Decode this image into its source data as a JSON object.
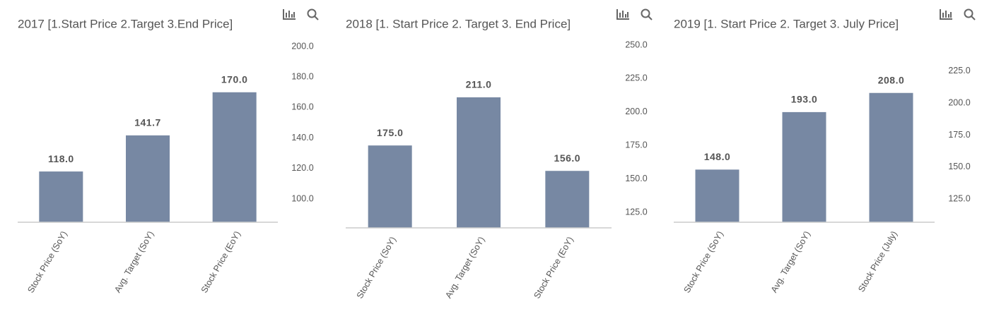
{
  "chart_data": [
    {
      "type": "bar",
      "title": "2017 [1.Start Price 2.Target 3.End Price]",
      "categories": [
        "Stock Price (SoY)",
        "Avg. Target (SoY)",
        "Stock Price (EoY)"
      ],
      "values": [
        118,
        141.7,
        170
      ],
      "value_labels": [
        "118.0",
        "141.7",
        "170.0"
      ],
      "color": "#7788a3",
      "ylim": [
        84.7,
        200
      ],
      "yticks": [
        {
          "value": 100,
          "label": "100.0"
        },
        {
          "value": 120,
          "label": "120.0"
        },
        {
          "value": 140,
          "label": "140.0"
        },
        {
          "value": 160,
          "label": "160.0"
        },
        {
          "value": 180,
          "label": "180.0"
        },
        {
          "value": 200,
          "label": "200.0"
        }
      ],
      "grid": false
    },
    {
      "type": "bar",
      "title": "2018 [1. Start Price 2. Target 3. End Price]",
      "categories": [
        "Stock Price (SoY)",
        "Avg. Target (SoY)",
        "Stock Price (EoY)"
      ],
      "values": [
        175,
        211,
        156
      ],
      "value_labels": [
        "175.0",
        "211.0",
        "156.0"
      ],
      "color": "#7788a3",
      "ylim": [
        113.4,
        250
      ],
      "yticks": [
        {
          "value": 125,
          "label": "125.0"
        },
        {
          "value": 150,
          "label": "150.0"
        },
        {
          "value": 175,
          "label": "175.0"
        },
        {
          "value": 200,
          "label": "200.0"
        },
        {
          "value": 225,
          "label": "225.0"
        },
        {
          "value": 250,
          "label": "250.0"
        }
      ],
      "grid": false
    },
    {
      "type": "bar",
      "title": "2019 [1. Start Price 2. Target 3. July Price]",
      "categories": [
        "Stock Price (SoY)",
        "Avg. Target (SoY)",
        "Stock Price (July)"
      ],
      "values": [
        148,
        193,
        208
      ],
      "value_labels": [
        "148.0",
        "193.0",
        "208.0"
      ],
      "color": "#7788a3",
      "ylim": [
        106.8,
        244.3
      ],
      "yticks": [
        {
          "value": 125,
          "label": "125.0"
        },
        {
          "value": 150,
          "label": "150.0"
        },
        {
          "value": 175,
          "label": "175.0"
        },
        {
          "value": 200,
          "label": "200.0"
        },
        {
          "value": 225,
          "label": "225.0"
        }
      ],
      "grid": false
    }
  ]
}
